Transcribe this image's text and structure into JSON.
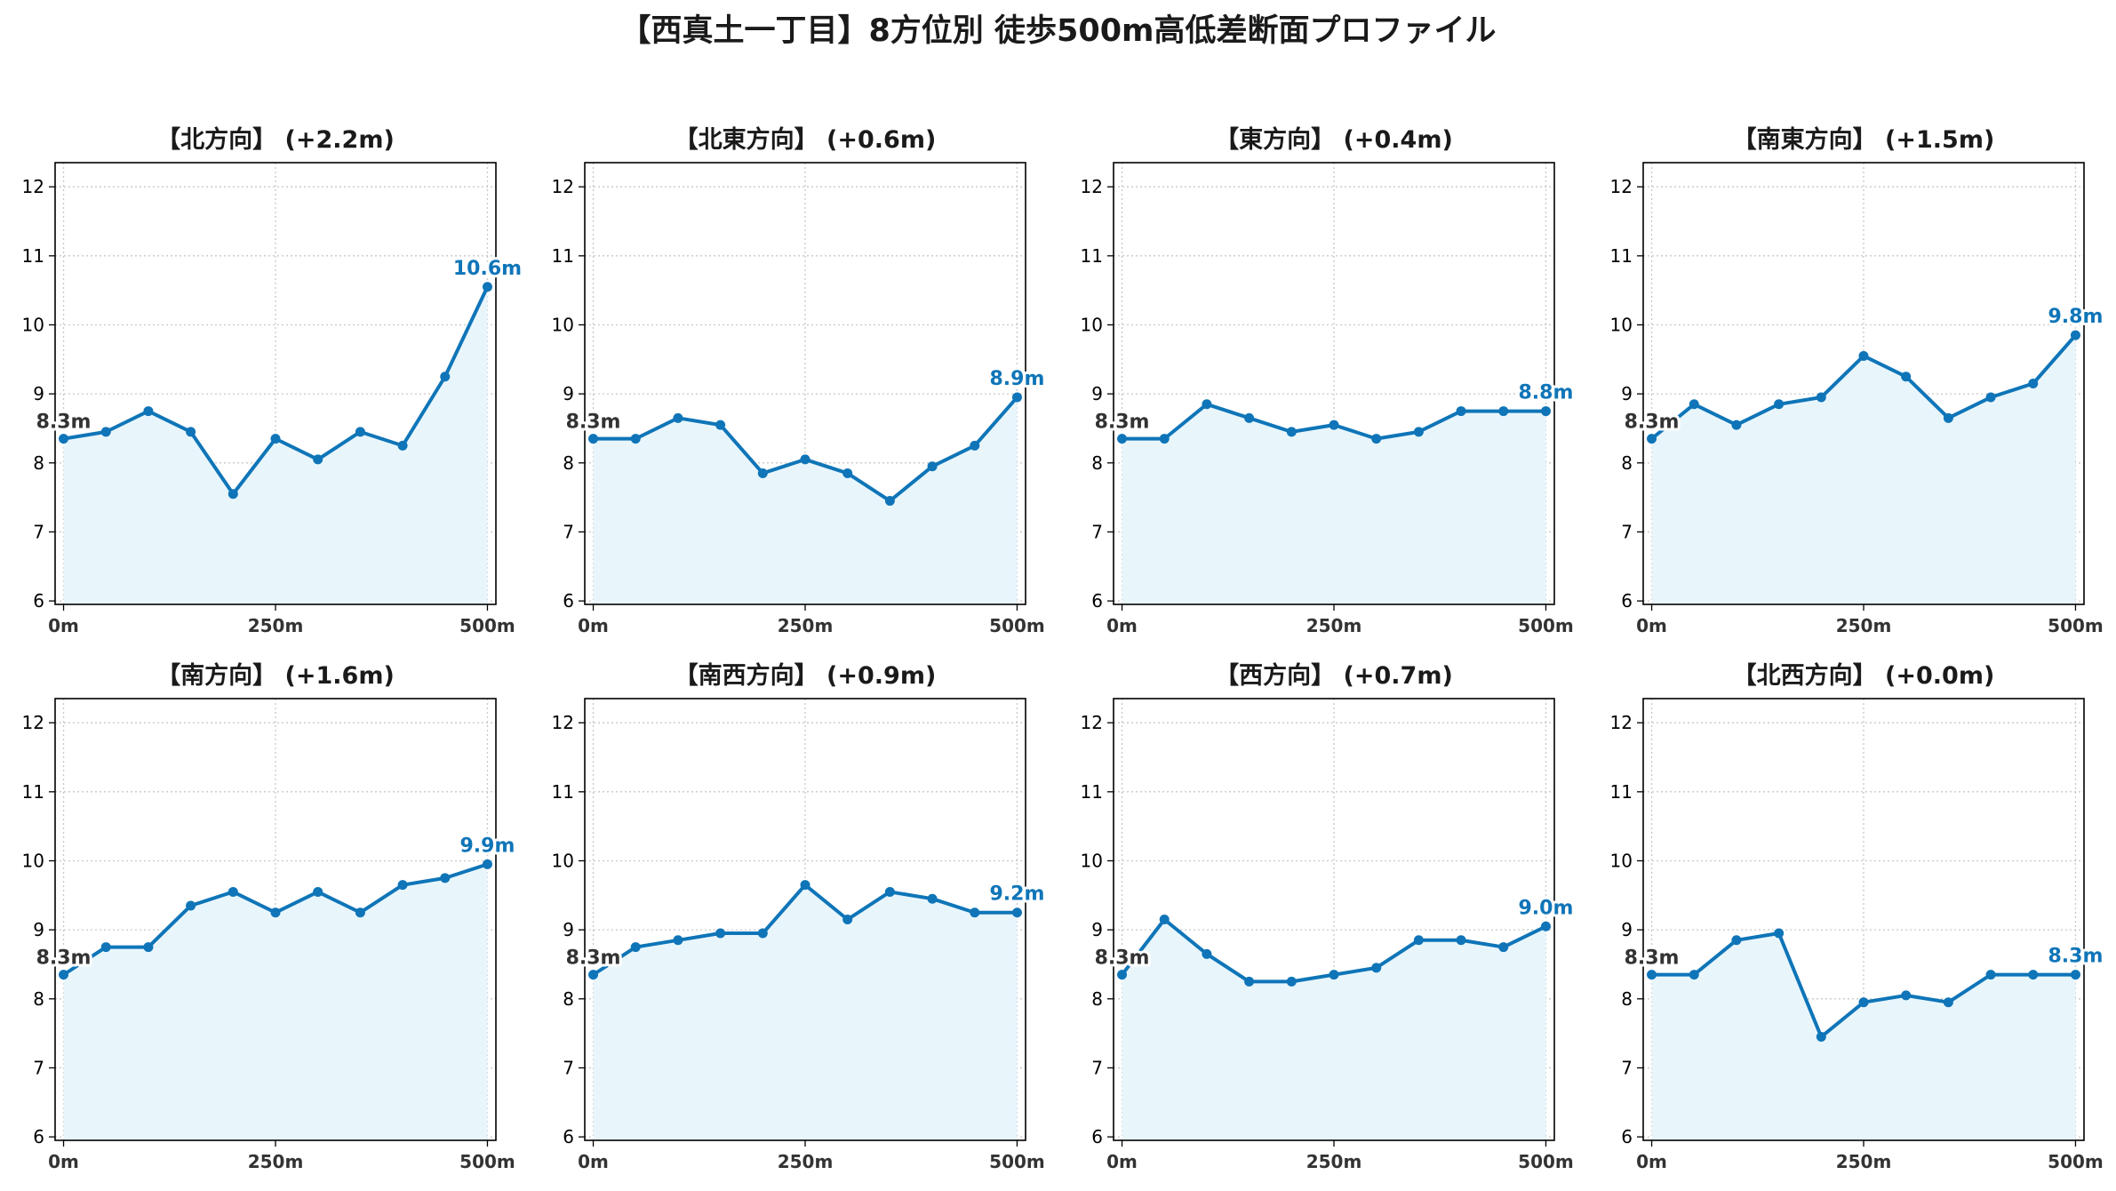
{
  "title": "【西真土一丁目】8方位別 徒歩500m高低差断面プロファイル",
  "colors": {
    "line": "#0f75b8",
    "fill": "#e8f6fc",
    "grid": "#c8c8c8",
    "start_label": "#333333"
  },
  "chart_data": [
    {
      "type": "area",
      "title": "【北方向】 (+2.2m)",
      "x": [
        0,
        50,
        100,
        150,
        200,
        250,
        300,
        350,
        400,
        450,
        500
      ],
      "values": [
        8.35,
        8.45,
        8.75,
        8.45,
        7.55,
        8.35,
        8.05,
        8.45,
        8.25,
        9.25,
        10.55
      ],
      "start_label": "8.3m",
      "end_label": "10.6m"
    },
    {
      "type": "area",
      "title": "【北東方向】 (+0.6m)",
      "x": [
        0,
        50,
        100,
        150,
        200,
        250,
        300,
        350,
        400,
        450,
        500
      ],
      "values": [
        8.35,
        8.35,
        8.65,
        8.55,
        7.85,
        8.05,
        7.85,
        7.45,
        7.95,
        8.25,
        8.95
      ],
      "start_label": "8.3m",
      "end_label": "8.9m"
    },
    {
      "type": "area",
      "title": "【東方向】 (+0.4m)",
      "x": [
        0,
        50,
        100,
        150,
        200,
        250,
        300,
        350,
        400,
        450,
        500
      ],
      "values": [
        8.35,
        8.35,
        8.85,
        8.65,
        8.45,
        8.55,
        8.35,
        8.45,
        8.75,
        8.75,
        8.75
      ],
      "start_label": "8.3m",
      "end_label": "8.8m"
    },
    {
      "type": "area",
      "title": "【南東方向】 (+1.5m)",
      "x": [
        0,
        50,
        100,
        150,
        200,
        250,
        300,
        350,
        400,
        450,
        500
      ],
      "values": [
        8.35,
        8.85,
        8.55,
        8.85,
        8.95,
        9.55,
        9.25,
        8.65,
        8.95,
        9.15,
        9.85
      ],
      "start_label": "8.3m",
      "end_label": "9.8m"
    },
    {
      "type": "area",
      "title": "【南方向】 (+1.6m)",
      "x": [
        0,
        50,
        100,
        150,
        200,
        250,
        300,
        350,
        400,
        450,
        500
      ],
      "values": [
        8.35,
        8.75,
        8.75,
        9.35,
        9.55,
        9.25,
        9.55,
        9.25,
        9.65,
        9.75,
        9.95
      ],
      "start_label": "8.3m",
      "end_label": "9.9m"
    },
    {
      "type": "area",
      "title": "【南西方向】 (+0.9m)",
      "x": [
        0,
        50,
        100,
        150,
        200,
        250,
        300,
        350,
        400,
        450,
        500
      ],
      "values": [
        8.35,
        8.75,
        8.85,
        8.95,
        8.95,
        9.65,
        9.15,
        9.55,
        9.45,
        9.25,
        9.25
      ],
      "start_label": "8.3m",
      "end_label": "9.2m"
    },
    {
      "type": "area",
      "title": "【西方向】 (+0.7m)",
      "x": [
        0,
        50,
        100,
        150,
        200,
        250,
        300,
        350,
        400,
        450,
        500
      ],
      "values": [
        8.35,
        9.15,
        8.65,
        8.25,
        8.25,
        8.35,
        8.45,
        8.85,
        8.85,
        8.75,
        9.05
      ],
      "start_label": "8.3m",
      "end_label": "9.0m"
    },
    {
      "type": "area",
      "title": "【北西方向】 (+0.0m)",
      "x": [
        0,
        50,
        100,
        150,
        200,
        250,
        300,
        350,
        400,
        450,
        500
      ],
      "values": [
        8.35,
        8.35,
        8.85,
        8.95,
        7.45,
        7.95,
        8.05,
        7.95,
        8.35,
        8.35,
        8.35
      ],
      "start_label": "8.3m",
      "end_label": "8.3m"
    }
  ],
  "axes": {
    "xlim": [
      -10,
      510
    ],
    "ylim": [
      5.95,
      12.35
    ],
    "yticks": [
      6,
      7,
      8,
      9,
      10,
      11,
      12
    ],
    "xticks": [
      0,
      250,
      500
    ],
    "xtick_labels": [
      "0m",
      "250m",
      "500m"
    ],
    "grid": true
  }
}
